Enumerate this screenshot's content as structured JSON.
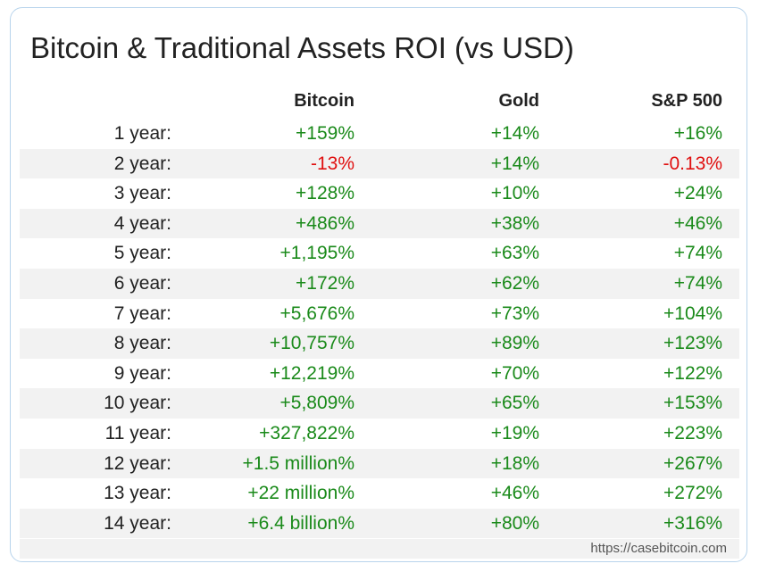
{
  "title": "Bitcoin & Traditional Assets ROI (vs USD)",
  "columns": [
    "Bitcoin",
    "Gold",
    "S&P 500"
  ],
  "colors": {
    "positive": "#1a8a1a",
    "negative": "#e01010"
  },
  "rows": [
    {
      "label": "1 year:",
      "btc": "+159%",
      "gold": "+14%",
      "sp": "+16%"
    },
    {
      "label": "2 year:",
      "btc": "-13%",
      "gold": "+14%",
      "sp": "-0.13%"
    },
    {
      "label": "3 year:",
      "btc": "+128%",
      "gold": "+10%",
      "sp": "+24%"
    },
    {
      "label": "4 year:",
      "btc": "+486%",
      "gold": "+38%",
      "sp": "+46%"
    },
    {
      "label": "5 year:",
      "btc": "+1,195%",
      "gold": "+63%",
      "sp": "+74%"
    },
    {
      "label": "6 year:",
      "btc": "+172%",
      "gold": "+62%",
      "sp": "+74%"
    },
    {
      "label": "7 year:",
      "btc": "+5,676%",
      "gold": "+73%",
      "sp": "+104%"
    },
    {
      "label": "8 year:",
      "btc": "+10,757%",
      "gold": "+89%",
      "sp": "+123%"
    },
    {
      "label": "9 year:",
      "btc": "+12,219%",
      "gold": "+70%",
      "sp": "+122%"
    },
    {
      "label": "10 year:",
      "btc": "+5,809%",
      "gold": "+65%",
      "sp": "+153%"
    },
    {
      "label": "11 year:",
      "btc": "+327,822%",
      "gold": "+19%",
      "sp": "+223%"
    },
    {
      "label": "12 year:",
      "btc": "+1.5 million%",
      "gold": "+18%",
      "sp": "+267%"
    },
    {
      "label": "13 year:",
      "btc": "+22 million%",
      "gold": "+46%",
      "sp": "+272%"
    },
    {
      "label": "14 year:",
      "btc": "+6.4 billion%",
      "gold": "+80%",
      "sp": "+316%"
    }
  ],
  "source": "https://casebitcoin.com"
}
